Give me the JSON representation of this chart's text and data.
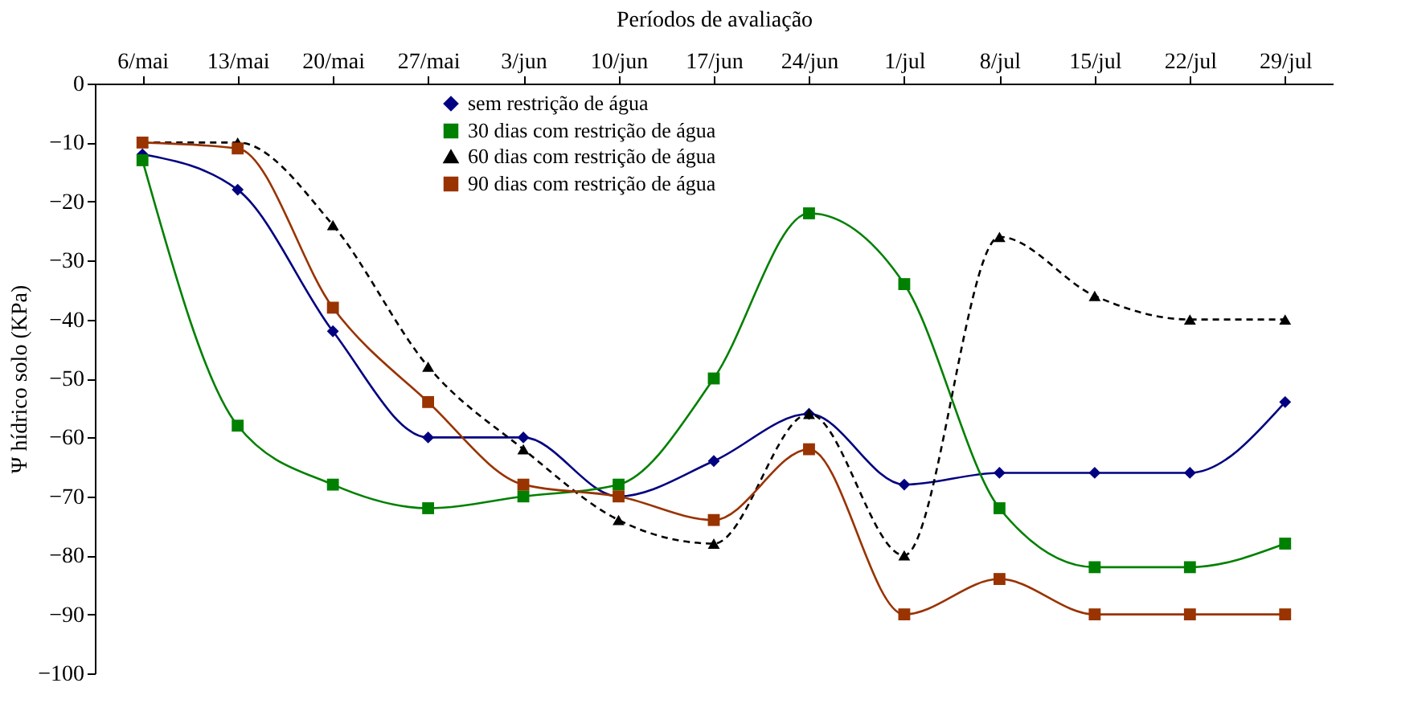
{
  "chart_data": {
    "type": "line",
    "xlabel": "Períodos de avaliação",
    "ylabel": "Ψ hídrico solo (KPa)",
    "categories": [
      "6/mai",
      "13/mai",
      "20/mai",
      "27/mai",
      "3/jun",
      "10/jun",
      "17/jun",
      "24/jun",
      "1/jul",
      "8/jul",
      "15/jul",
      "22/jul",
      "29/jul"
    ],
    "ylim": [
      -100,
      0
    ],
    "yticks": [
      -100,
      -90,
      -80,
      -70,
      -60,
      -50,
      -40,
      -30,
      -20,
      -10,
      0
    ],
    "grid": false,
    "legend": "top left",
    "series": [
      {
        "name": "sem restrição de água",
        "color": "#000080",
        "marker": "diamond",
        "line_style": "solid",
        "values": [
          -12,
          -18,
          -42,
          -60,
          -60,
          -70,
          -64,
          -56,
          -68,
          -66,
          -66,
          -66,
          -54
        ]
      },
      {
        "name": "30 dias com restrição de água",
        "color": "#008000",
        "marker": "square",
        "line_style": "solid",
        "values": [
          -13,
          -58,
          -68,
          -72,
          -70,
          -68,
          -50,
          -22,
          -34,
          -72,
          -82,
          -82,
          -78
        ]
      },
      {
        "name": "60 dias com restrição de água",
        "color": "#000000",
        "marker": "triangle",
        "line_style": "dashed",
        "values": [
          -10,
          -10,
          -24,
          -48,
          -62,
          -74,
          -78,
          -56,
          -80,
          -26,
          -36,
          -40,
          -40
        ]
      },
      {
        "name": "90 dias com restrição de água",
        "color": "#993300",
        "marker": "square",
        "line_style": "solid",
        "values": [
          -10,
          -11,
          -38,
          -54,
          -68,
          -70,
          -74,
          -62,
          -90,
          -84,
          -90,
          -90,
          -90
        ]
      }
    ]
  }
}
